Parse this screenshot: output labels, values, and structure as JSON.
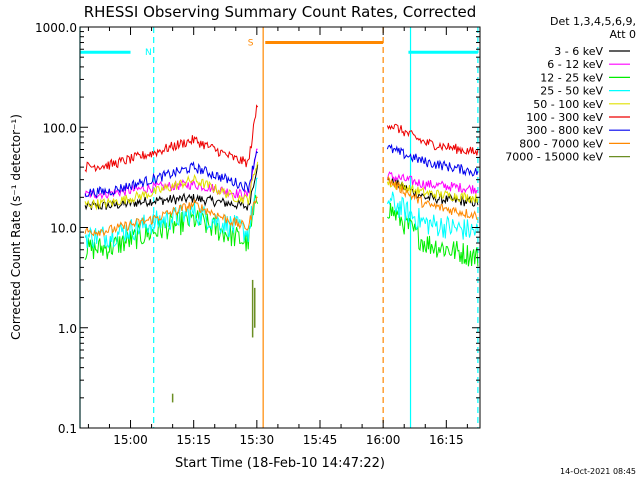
{
  "chart_data": {
    "type": "line",
    "title": "RHESSI Observing Summary Count Rates, Corrected",
    "xlabel": "Start Time (18-Feb-10 14:47:22)",
    "ylabel": "Corrected Count Rate (s⁻¹ detector⁻¹)",
    "y_scale": "log",
    "ylim": [
      0.1,
      1000
    ],
    "xlim": [
      -12,
      83
    ],
    "x_tick_labels": [
      "15:00",
      "15:15",
      "15:30",
      "15:45",
      "16:00",
      "16:15"
    ],
    "x_tick_values": [
      0,
      15,
      30,
      45,
      60,
      75
    ],
    "y_tick_labels": [
      "0.1",
      "1.0",
      "10.0",
      "100.0",
      "1000.0"
    ],
    "y_tick_values": [
      0.1,
      1,
      10,
      100,
      1000
    ],
    "legend_header": [
      "Det 1,3,4,5,6,9,",
      "Att 0"
    ],
    "legend_placement": "right",
    "grid": false,
    "series": [
      {
        "name": "3 - 6 keV",
        "color": "#000000",
        "x": [
          -12,
          -5,
          5,
          15,
          25,
          28,
          30,
          61,
          70,
          83
        ],
        "y": [
          16,
          16.5,
          18.5,
          19.5,
          17,
          16,
          40,
          30,
          20,
          17.5
        ]
      },
      {
        "name": "6 - 12 keV",
        "color": "#ff00ff",
        "x": [
          -12,
          -5,
          5,
          15,
          25,
          28,
          30,
          61,
          70,
          83
        ],
        "y": [
          21,
          22,
          25,
          27,
          22,
          21,
          60,
          33,
          27,
          24
        ]
      },
      {
        "name": "12 - 25 keV",
        "color": "#00ee00",
        "x": [
          -12,
          -5,
          5,
          15,
          25,
          28,
          30,
          61,
          70,
          83
        ],
        "y": [
          6,
          6.3,
          9,
          12,
          8,
          7,
          20,
          16,
          7,
          5
        ]
      },
      {
        "name": "25 - 50 keV",
        "color": "#00ffff",
        "x": [
          -12,
          -5,
          5,
          15,
          25,
          28,
          30,
          61,
          70,
          83
        ],
        "y": [
          8,
          8.3,
          11,
          14,
          10,
          9,
          25,
          19,
          11,
          9
        ]
      },
      {
        "name": "50 - 100 keV",
        "color": "#e0e000",
        "x": [
          -12,
          -5,
          5,
          15,
          25,
          28,
          30,
          61,
          70,
          83
        ],
        "y": [
          17,
          17.5,
          22,
          30,
          20,
          19,
          45,
          28,
          22,
          19.5
        ]
      },
      {
        "name": "100 - 300 keV",
        "color": "#ee0000",
        "x": [
          -12,
          -5,
          5,
          15,
          25,
          28,
          30,
          61,
          70,
          83
        ],
        "y": [
          40,
          42,
          55,
          75,
          48,
          44,
          160,
          110,
          70,
          55
        ]
      },
      {
        "name": "300 - 800 keV",
        "color": "#0000ee",
        "x": [
          -12,
          -5,
          5,
          15,
          25,
          28,
          30,
          61,
          70,
          83
        ],
        "y": [
          22,
          23,
          30,
          40,
          28,
          25,
          60,
          62,
          45,
          35
        ]
      },
      {
        "name": "800 - 7000 keV",
        "color": "#ff8800",
        "x": [
          -12,
          -5,
          5,
          15,
          25,
          28,
          30,
          61,
          70,
          83
        ],
        "y": [
          9,
          9.4,
          12,
          17,
          11,
          10,
          22,
          30,
          17,
          13
        ]
      },
      {
        "name": "7000 - 15000 keV",
        "color": "#6b8e23",
        "x": [
          10,
          10,
          29,
          29,
          29.5,
          29.5
        ],
        "y": [
          0.18,
          0.22,
          0.8,
          3,
          1.0,
          2.5
        ],
        "segments": [
          [
            [
              10,
              0.18
            ],
            [
              10,
              0.22
            ]
          ],
          [
            [
              29,
              0.8
            ],
            [
              29,
              3
            ]
          ],
          [
            [
              29.5,
              1.0
            ],
            [
              29.5,
              2.5
            ]
          ]
        ]
      }
    ],
    "annotations": [
      {
        "text": "N",
        "x": 2,
        "color": "#00ffff"
      },
      {
        "text": "S",
        "x": 29.5,
        "color": "#ff8800"
      }
    ],
    "state_bars": [
      {
        "label": "N",
        "color": "#00ffff",
        "x_start": -12,
        "x_end": 0,
        "y": 560
      },
      {
        "label": "S",
        "color": "#ff8800",
        "x_start": 32,
        "x_end": 60,
        "y": 700
      },
      {
        "label": "N",
        "color": "#00ffff",
        "x_start": 66,
        "x_end": 82.5,
        "y": 560
      }
    ],
    "vertical_lines": [
      {
        "x": -12,
        "color": "#00ffff",
        "style": "solid"
      },
      {
        "x": 5.5,
        "color": "#00ffff",
        "style": "dashed"
      },
      {
        "x": 31.5,
        "color": "#ff8800",
        "style": "solid"
      },
      {
        "x": 60,
        "color": "#ff8800",
        "style": "dashed"
      },
      {
        "x": 66.5,
        "color": "#00ffff",
        "style": "solid"
      },
      {
        "x": 82.5,
        "color": "#00ffff",
        "style": "dashed"
      }
    ],
    "footer": "14-Oct-2021 08:45"
  }
}
